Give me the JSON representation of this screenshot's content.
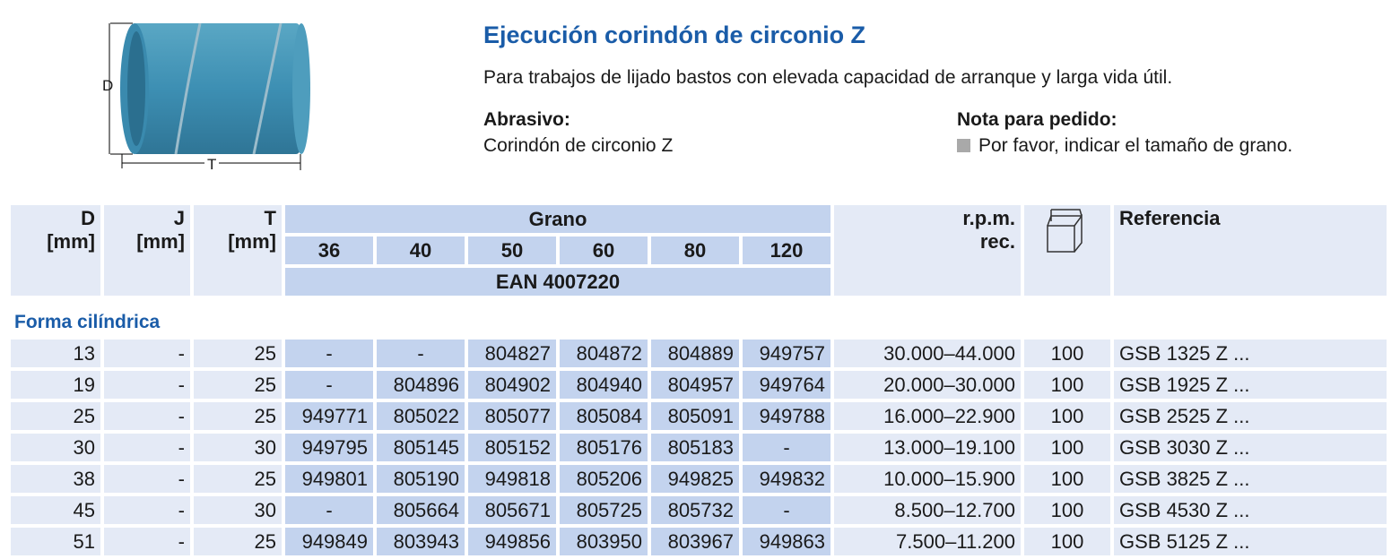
{
  "header": {
    "title": "Ejecución corindón de circonio Z",
    "description": "Para trabajos de lijado bastos con elevada capacidad de arranque y larga vida útil.",
    "abrasive_label": "Abrasivo:",
    "abrasive_value": "Corindón de circonio Z",
    "order_note_label": "Nota para pedido:",
    "order_note_value": "Por favor, indicar el tamaño de grano."
  },
  "figure": {
    "dim_d": "D",
    "dim_t": "T"
  },
  "table": {
    "col_d": "D",
    "col_j": "J",
    "col_t": "T",
    "unit": "[mm]",
    "grain_header": "Grano",
    "grains": [
      "36",
      "40",
      "50",
      "60",
      "80",
      "120"
    ],
    "ean": "EAN 4007220",
    "rpm_1": "r.p.m.",
    "rpm_2": "rec.",
    "package_icon": "box-icon",
    "reference": "Referencia",
    "section": "Forma cilíndrica",
    "rows": [
      {
        "d": "13",
        "j": "-",
        "t": "25",
        "ean": [
          "-",
          "-",
          "804827",
          "804872",
          "804889",
          "949757"
        ],
        "rpm": "30.000–44.000",
        "qty": "100",
        "ref": "GSB 1325 Z ..."
      },
      {
        "d": "19",
        "j": "-",
        "t": "25",
        "ean": [
          "-",
          "804896",
          "804902",
          "804940",
          "804957",
          "949764"
        ],
        "rpm": "20.000–30.000",
        "qty": "100",
        "ref": "GSB 1925 Z ..."
      },
      {
        "d": "25",
        "j": "-",
        "t": "25",
        "ean": [
          "949771",
          "805022",
          "805077",
          "805084",
          "805091",
          "949788"
        ],
        "rpm": "16.000–22.900",
        "qty": "100",
        "ref": "GSB 2525 Z ..."
      },
      {
        "d": "30",
        "j": "-",
        "t": "30",
        "ean": [
          "949795",
          "805145",
          "805152",
          "805176",
          "805183",
          "-"
        ],
        "rpm": "13.000–19.100",
        "qty": "100",
        "ref": "GSB 3030 Z ..."
      },
      {
        "d": "38",
        "j": "-",
        "t": "25",
        "ean": [
          "949801",
          "805190",
          "949818",
          "805206",
          "949825",
          "949832"
        ],
        "rpm": "10.000–15.900",
        "qty": "100",
        "ref": "GSB 3825 Z ..."
      },
      {
        "d": "45",
        "j": "-",
        "t": "30",
        "ean": [
          "-",
          "805664",
          "805671",
          "805725",
          "805732",
          "-"
        ],
        "rpm": "8.500–12.700",
        "qty": "100",
        "ref": "GSB 4530 Z ..."
      },
      {
        "d": "51",
        "j": "-",
        "t": "25",
        "ean": [
          "949849",
          "803943",
          "949856",
          "803950",
          "803967",
          "949863"
        ],
        "rpm": "7.500–11.200",
        "qty": "100",
        "ref": "GSB 5125 Z ..."
      }
    ]
  },
  "colors": {
    "accent": "#1a5ca8",
    "cell_light": "#e4eaf6",
    "cell_dark": "#c3d3ee"
  }
}
